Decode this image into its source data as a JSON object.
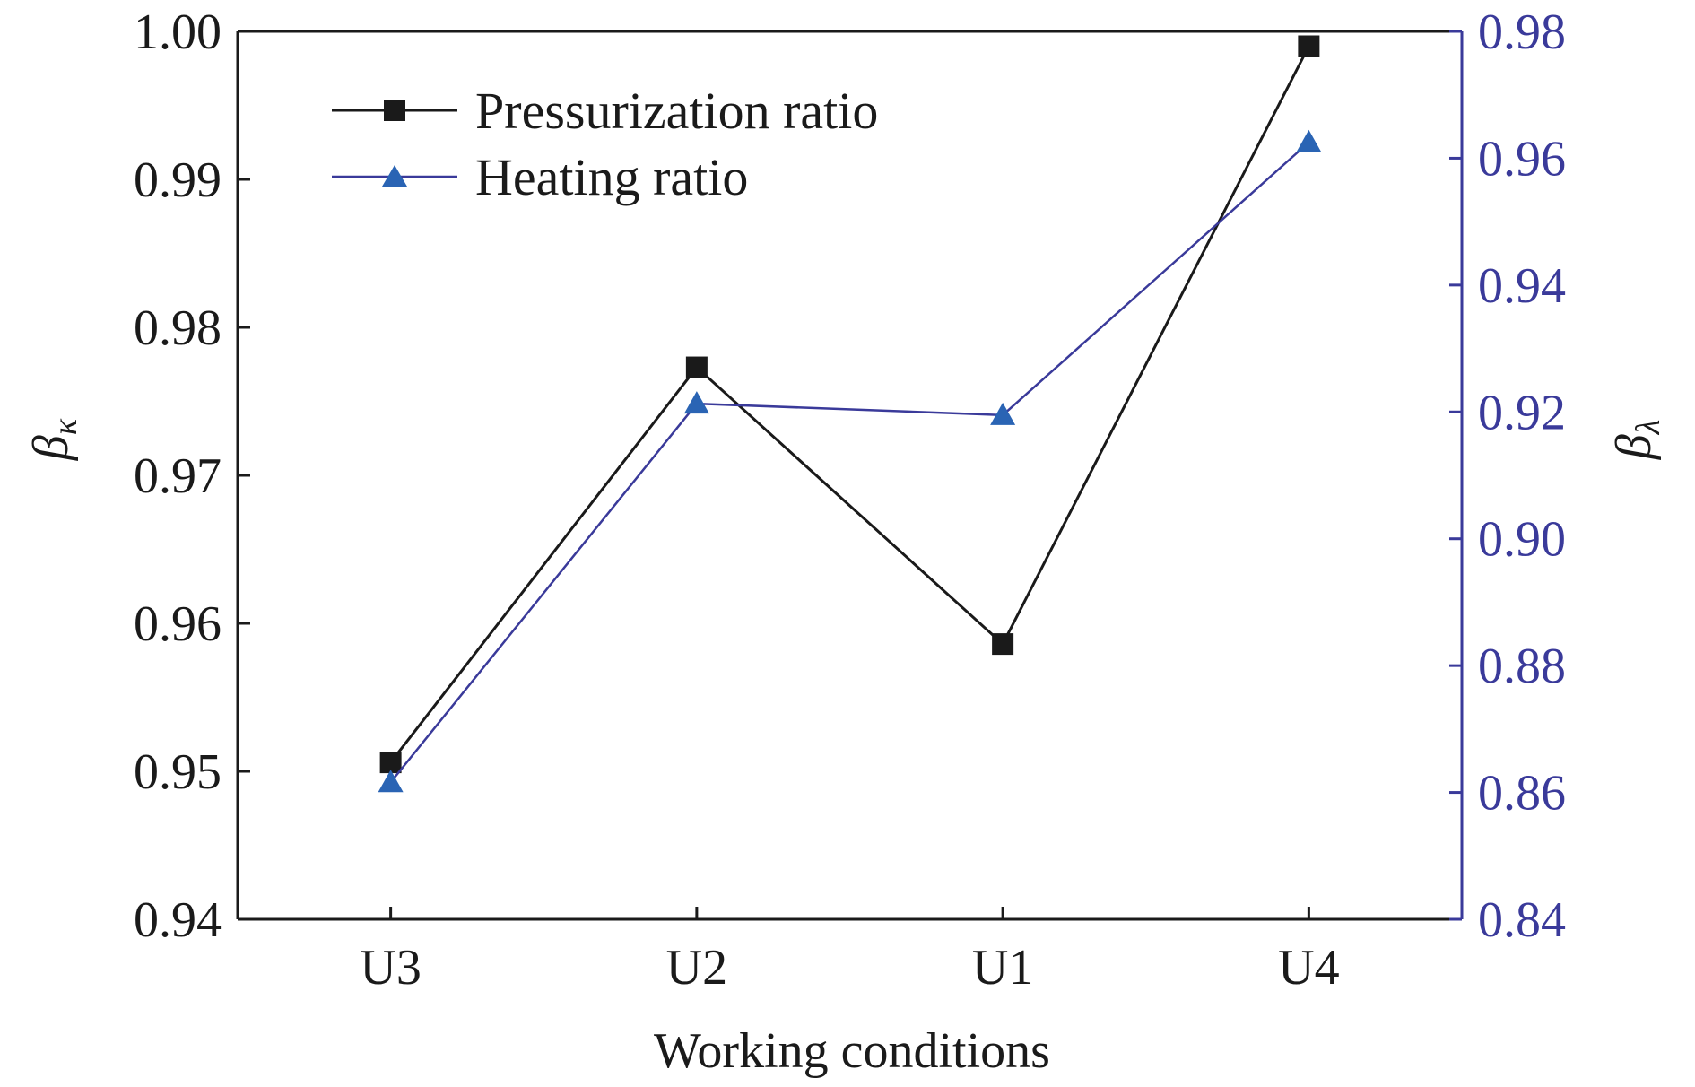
{
  "chart_data": {
    "type": "line",
    "categories": [
      "U3",
      "U2",
      "U1",
      "U4"
    ],
    "xlabel": "Working conditions",
    "ylabel_left": "β",
    "ylabel_left_sub": "κ",
    "ylabel_right": "β",
    "ylabel_right_sub": "λ",
    "ylim_left": [
      0.94,
      1.0
    ],
    "ylim_right": [
      0.84,
      0.98
    ],
    "yticks_left": [
      "0.94",
      "0.95",
      "0.96",
      "0.97",
      "0.98",
      "0.99",
      "1.00"
    ],
    "yticks_right": [
      "0.84",
      "0.86",
      "0.88",
      "0.90",
      "0.92",
      "0.94",
      "0.96",
      "0.98"
    ],
    "legend_position": "top-left",
    "grid": false,
    "series": [
      {
        "name": "Pressurization ratio",
        "axis": "left",
        "marker": "square",
        "color": "#1a1a1a",
        "values": [
          0.9506,
          0.9773,
          0.9586,
          0.999
        ]
      },
      {
        "name": "Heating ratio",
        "axis": "right",
        "marker": "triangle",
        "color": "#3a3a9a",
        "marker_color": "#2a64b4",
        "values": [
          0.8616,
          0.9213,
          0.9195,
          0.9625
        ]
      }
    ],
    "colors": {
      "axis_left": "#1a1a1a",
      "axis_right": "#3a3a9a",
      "tick_right_text": "#3a3a9a"
    }
  }
}
